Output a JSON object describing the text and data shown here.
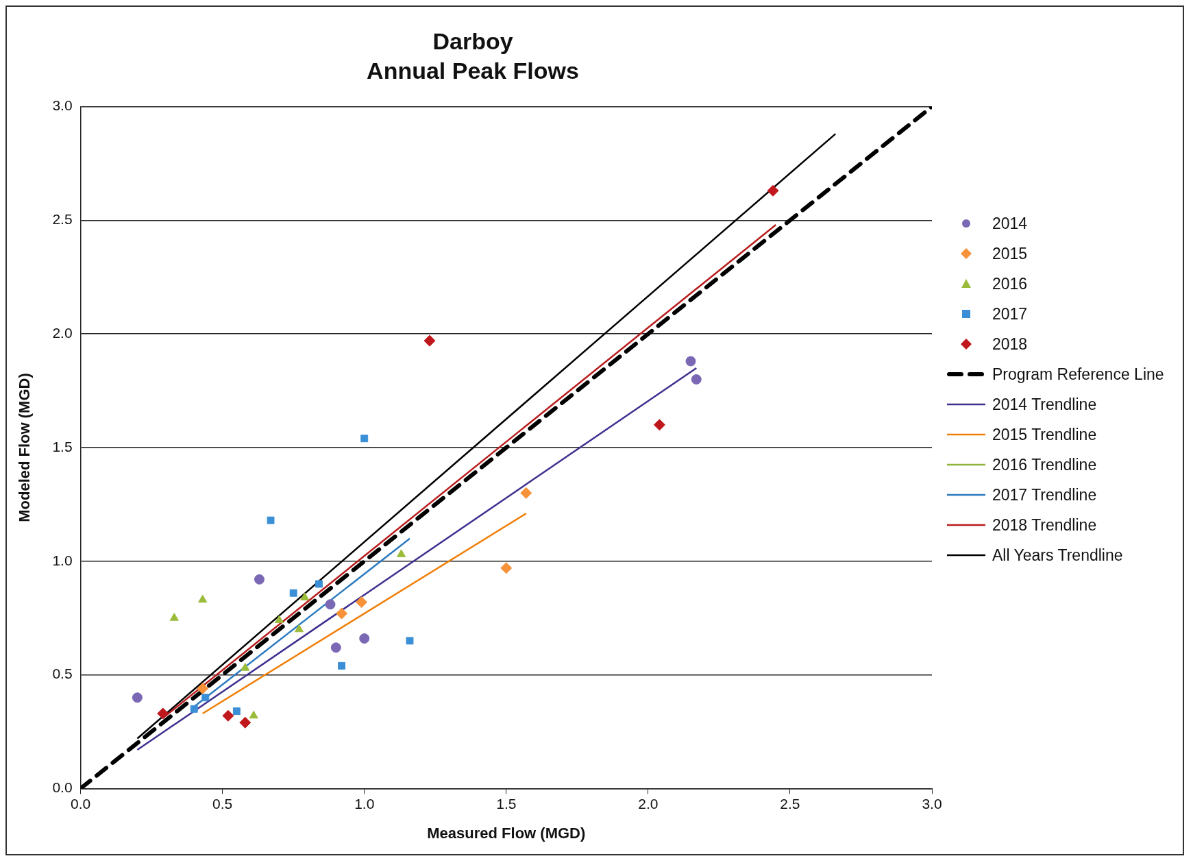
{
  "chart_data": {
    "type": "scatter",
    "title": "Darboy",
    "subtitle": "Annual Peak Flows",
    "xlabel": "Measured Flow (MGD)",
    "ylabel": "Modeled Flow (MGD)",
    "xlim": [
      0,
      3
    ],
    "ylim": [
      0,
      3
    ],
    "xticks": [
      {
        "value": 0,
        "label": "0.0"
      },
      {
        "value": 0.5,
        "label": "0.5"
      },
      {
        "value": 1,
        "label": "1.0"
      },
      {
        "value": 1.5,
        "label": "1.5"
      },
      {
        "value": 2,
        "label": "2.0"
      },
      {
        "value": 2.5,
        "label": "2.5"
      },
      {
        "value": 3,
        "label": "3.0"
      }
    ],
    "yticks": [
      {
        "value": 0,
        "label": "0.0"
      },
      {
        "value": 0.5,
        "label": "0.5"
      },
      {
        "value": 1,
        "label": "1.0"
      },
      {
        "value": 1.5,
        "label": "1.5"
      },
      {
        "value": 2,
        "label": "2.0"
      },
      {
        "value": 2.5,
        "label": "2.5"
      },
      {
        "value": 3,
        "label": "3.0"
      }
    ],
    "grid": "y",
    "legend": "right",
    "series": [
      {
        "name": "2014",
        "type": "scatter",
        "marker": "circle",
        "color": "#7b68b5",
        "x": [
          0.2,
          0.63,
          0.88,
          0.9,
          1.0,
          2.15,
          2.17
        ],
        "values": [
          0.4,
          0.92,
          0.81,
          0.62,
          0.66,
          1.88,
          1.8
        ]
      },
      {
        "name": "2015",
        "type": "scatter",
        "marker": "diamond",
        "color": "#f5923a",
        "x": [
          0.43,
          0.92,
          0.99,
          1.57,
          1.5
        ],
        "values": [
          0.44,
          0.77,
          0.82,
          1.3,
          0.97
        ]
      },
      {
        "name": "2016",
        "type": "scatter",
        "marker": "triangle",
        "color": "#9bbb3b",
        "x": [
          0.33,
          0.43,
          0.79,
          0.7,
          0.77,
          0.58,
          0.61,
          1.13
        ],
        "values": [
          0.75,
          0.83,
          0.84,
          0.74,
          0.7,
          0.53,
          0.32,
          1.03
        ]
      },
      {
        "name": "2017",
        "type": "scatter",
        "marker": "square",
        "color": "#3a8fd6",
        "x": [
          0.67,
          0.75,
          0.84,
          0.44,
          0.4,
          0.55,
          0.92,
          1.16,
          1.0
        ],
        "values": [
          1.18,
          0.86,
          0.9,
          0.4,
          0.35,
          0.34,
          0.54,
          0.65,
          1.54
        ]
      },
      {
        "name": "2018",
        "type": "scatter",
        "marker": "diamond",
        "color": "#c0171c",
        "x": [
          0.29,
          0.52,
          0.58,
          2.04,
          1.23,
          2.44
        ],
        "values": [
          0.33,
          0.32,
          0.29,
          1.6,
          1.97,
          2.63
        ]
      },
      {
        "name": "Program Reference Line",
        "type": "line",
        "marker": "none",
        "line_style": "dashed",
        "color": "#000000",
        "x": [
          0,
          3
        ],
        "values": [
          0,
          3
        ]
      },
      {
        "name": "2014 Trendline",
        "type": "line",
        "marker": "none",
        "line_style": "solid",
        "color": "#3f2f8f",
        "x": [
          0.2,
          2.17
        ],
        "values": [
          0.17,
          1.85
        ]
      },
      {
        "name": "2015 Trendline",
        "type": "line",
        "marker": "none",
        "line_style": "solid",
        "color": "#f07f09",
        "x": [
          0.43,
          1.57
        ],
        "values": [
          0.33,
          1.21
        ]
      },
      {
        "name": "2016 Trendline",
        "type": "line",
        "marker": "none",
        "line_style": "solid",
        "color": "#8db53a"
      },
      {
        "name": "2017 Trendline",
        "type": "line",
        "marker": "none",
        "line_style": "solid",
        "color": "#2a7ac0",
        "x": [
          0.4,
          1.16
        ],
        "values": [
          0.36,
          1.1
        ]
      },
      {
        "name": "2018 Trendline",
        "type": "line",
        "marker": "none",
        "line_style": "solid",
        "color": "#b81c1c",
        "x": [
          0.29,
          2.45
        ],
        "values": [
          0.31,
          2.48
        ]
      },
      {
        "name": "All Years Trendline",
        "type": "line",
        "marker": "none",
        "line_style": "solid",
        "color": "#000000",
        "x": [
          0.2,
          2.66
        ],
        "values": [
          0.22,
          2.88
        ]
      }
    ]
  }
}
